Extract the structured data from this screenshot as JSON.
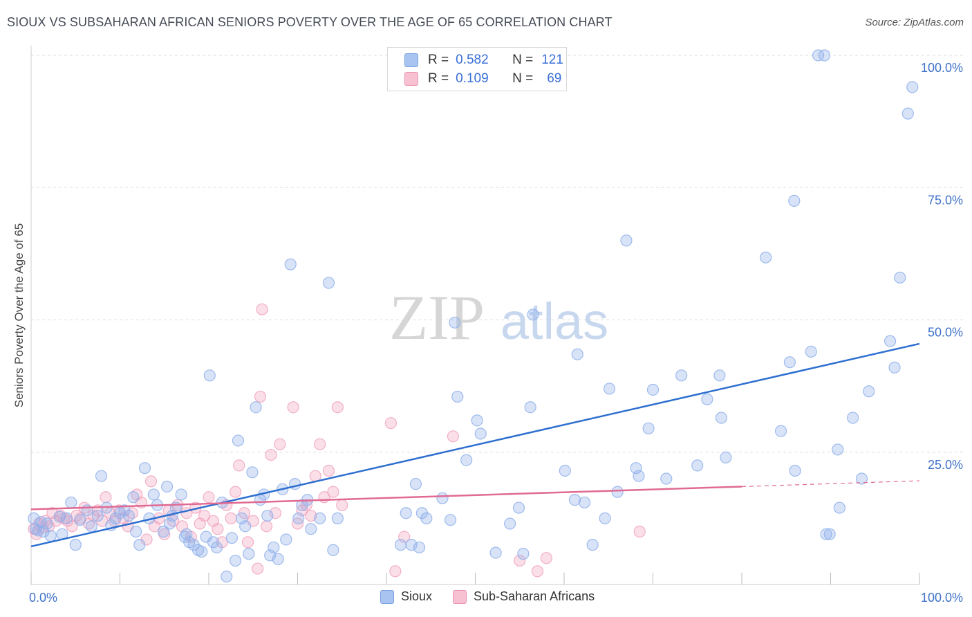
{
  "title": "SIOUX VS SUBSAHARAN AFRICAN SENIORS POVERTY OVER THE AGE OF 65 CORRELATION CHART",
  "source": "Source: ZipAtlas.com",
  "watermark": {
    "zip": "ZIP",
    "atlas": "atlas"
  },
  "legend": {
    "r_label": "R =",
    "n_label": "N =",
    "items": [
      {
        "r": "0.582",
        "n": "121",
        "color": "#a9c4f0",
        "border": "#7aa3e0"
      },
      {
        "r": "0.109",
        "n": "69",
        "color": "#f7c1d2",
        "border": "#eb93b0"
      }
    ]
  },
  "colors": {
    "blue_dot": "#8fb0ea",
    "blue_line": "#2d6fd0",
    "pink_dot": "#f1a3bd",
    "pink_line": "#e06a93",
    "tick_label": "#3f72c9"
  },
  "chart_data": {
    "type": "scatter",
    "xlabel": "",
    "ylabel": "Seniors Poverty Over the Age of 65",
    "xlim": [
      0,
      100
    ],
    "ylim": [
      0,
      100
    ],
    "x_tick_labels": [
      {
        "v": 0,
        "label": "0.0%"
      },
      {
        "v": 100,
        "label": "100.0%"
      }
    ],
    "y_tick_labels": [
      {
        "v": 25,
        "label": "25.0%"
      },
      {
        "v": 50,
        "label": "50.0%"
      },
      {
        "v": 75,
        "label": "75.0%"
      },
      {
        "v": 100,
        "label": "100.0%"
      }
    ],
    "legend_placement": "top-center",
    "series": [
      {
        "name": "Sioux",
        "trend": {
          "x0": 0,
          "y0": 7.2,
          "x1": 100,
          "y1": 45.5
        },
        "points": [
          [
            0.3,
            12.5
          ],
          [
            0.5,
            10.5
          ],
          [
            0.8,
            10.2
          ],
          [
            1.1,
            11.8
          ],
          [
            1.4,
            10.0
          ],
          [
            1.8,
            11.5
          ],
          [
            2.2,
            9.2
          ],
          [
            3.2,
            12.8
          ],
          [
            3.5,
            9.5
          ],
          [
            4.0,
            12.5
          ],
          [
            4.5,
            15.5
          ],
          [
            5.0,
            7.5
          ],
          [
            5.5,
            12.2
          ],
          [
            6.3,
            14.0
          ],
          [
            6.8,
            11.0
          ],
          [
            7.5,
            13.0
          ],
          [
            7.9,
            20.5
          ],
          [
            8.5,
            14.5
          ],
          [
            9.0,
            11.2
          ],
          [
            9.5,
            12.5
          ],
          [
            10.0,
            13.5
          ],
          [
            10.5,
            14.0
          ],
          [
            11.0,
            13.0
          ],
          [
            11.5,
            16.5
          ],
          [
            11.8,
            10.0
          ],
          [
            12.2,
            7.5
          ],
          [
            12.8,
            22.0
          ],
          [
            13.3,
            12.5
          ],
          [
            13.8,
            17.0
          ],
          [
            14.2,
            15.0
          ],
          [
            14.9,
            10.0
          ],
          [
            15.3,
            18.5
          ],
          [
            15.6,
            11.5
          ],
          [
            15.9,
            13.0
          ],
          [
            16.3,
            14.5
          ],
          [
            16.9,
            17.0
          ],
          [
            17.3,
            9.0
          ],
          [
            17.5,
            9.5
          ],
          [
            17.8,
            8.0
          ],
          [
            18.3,
            7.5
          ],
          [
            18.8,
            6.5
          ],
          [
            19.2,
            6.2
          ],
          [
            19.7,
            9.0
          ],
          [
            20.1,
            39.5
          ],
          [
            20.5,
            8.0
          ],
          [
            20.9,
            7.0
          ],
          [
            21.5,
            15.5
          ],
          [
            22.0,
            1.5
          ],
          [
            22.6,
            8.8
          ],
          [
            23.0,
            4.5
          ],
          [
            23.3,
            27.2
          ],
          [
            23.7,
            12.5
          ],
          [
            24.1,
            11.0
          ],
          [
            24.5,
            5.8
          ],
          [
            24.9,
            21.2
          ],
          [
            25.3,
            33.5
          ],
          [
            25.8,
            16.0
          ],
          [
            26.2,
            17.0
          ],
          [
            26.6,
            13.0
          ],
          [
            26.9,
            5.5
          ],
          [
            27.3,
            7.0
          ],
          [
            27.8,
            4.8
          ],
          [
            28.3,
            18.0
          ],
          [
            28.7,
            8.5
          ],
          [
            29.2,
            60.5
          ],
          [
            29.7,
            19.0
          ],
          [
            30.1,
            12.5
          ],
          [
            30.5,
            15.0
          ],
          [
            31.1,
            16.0
          ],
          [
            31.5,
            10.5
          ],
          [
            32.5,
            12.5
          ],
          [
            33.5,
            57.0
          ],
          [
            34.0,
            6.5
          ],
          [
            34.5,
            12.5
          ],
          [
            41.6,
            7.5
          ],
          [
            42.2,
            13.5
          ],
          [
            42.8,
            7.5
          ],
          [
            43.3,
            19.0
          ],
          [
            43.7,
            7.0
          ],
          [
            44.0,
            13.5
          ],
          [
            44.5,
            12.5
          ],
          [
            46.3,
            16.3
          ],
          [
            47.2,
            12.2
          ],
          [
            47.7,
            49.5
          ],
          [
            48.0,
            35.5
          ],
          [
            49.0,
            23.5
          ],
          [
            50.2,
            31.0
          ],
          [
            50.6,
            28.5
          ],
          [
            52.3,
            6.0
          ],
          [
            53.9,
            11.5
          ],
          [
            54.9,
            14.5
          ],
          [
            55.4,
            5.8
          ],
          [
            56.2,
            33.5
          ],
          [
            56.5,
            51.0
          ],
          [
            60.1,
            21.5
          ],
          [
            61.2,
            16.0
          ],
          [
            61.5,
            43.5
          ],
          [
            62.3,
            15.5
          ],
          [
            63.2,
            7.5
          ],
          [
            64.6,
            12.5
          ],
          [
            65.1,
            37.0
          ],
          [
            66.0,
            17.5
          ],
          [
            67.0,
            65.0
          ],
          [
            68.1,
            22.0
          ],
          [
            68.4,
            20.5
          ],
          [
            69.5,
            29.5
          ],
          [
            70.0,
            36.8
          ],
          [
            71.5,
            20.0
          ],
          [
            73.2,
            39.5
          ],
          [
            75.0,
            22.5
          ],
          [
            76.1,
            35.0
          ],
          [
            77.5,
            39.5
          ],
          [
            77.7,
            31.5
          ],
          [
            78.2,
            24.0
          ],
          [
            82.7,
            61.8
          ],
          [
            84.4,
            29.0
          ],
          [
            85.4,
            42.0
          ],
          [
            85.9,
            72.5
          ],
          [
            86.0,
            21.5
          ],
          [
            87.8,
            44.0
          ],
          [
            88.6,
            100.0
          ],
          [
            89.3,
            100.0
          ],
          [
            89.5,
            9.5
          ],
          [
            89.9,
            9.5
          ],
          [
            90.8,
            25.5
          ],
          [
            91.0,
            14.5
          ],
          [
            92.5,
            31.5
          ],
          [
            93.5,
            20.0
          ],
          [
            94.3,
            36.5
          ],
          [
            96.7,
            46.0
          ],
          [
            97.2,
            41.0
          ],
          [
            97.8,
            58.0
          ],
          [
            98.7,
            89.0
          ],
          [
            99.2,
            94.0
          ]
        ]
      },
      {
        "name": "Sub-Saharan Africans",
        "trend": {
          "x0": 0,
          "y0": 14.2,
          "x1": 80,
          "y1": 18.5
        },
        "trend_dashed": {
          "x0": 80,
          "y0": 18.5,
          "x1": 100,
          "y1": 19.6
        },
        "points": [
          [
            0.3,
            10.5
          ],
          [
            0.6,
            9.5
          ],
          [
            0.9,
            11.5
          ],
          [
            1.3,
            10.8
          ],
          [
            1.6,
            12.0
          ],
          [
            2.0,
            11.0
          ],
          [
            2.4,
            13.5
          ],
          [
            2.8,
            12.0
          ],
          [
            3.3,
            13.0
          ],
          [
            3.7,
            12.5
          ],
          [
            4.1,
            12.0
          ],
          [
            4.6,
            11.0
          ],
          [
            5.1,
            13.0
          ],
          [
            5.6,
            12.5
          ],
          [
            6.0,
            14.5
          ],
          [
            6.5,
            11.5
          ],
          [
            7.0,
            13.0
          ],
          [
            7.5,
            14.0
          ],
          [
            8.0,
            12.0
          ],
          [
            8.4,
            16.5
          ],
          [
            8.9,
            13.5
          ],
          [
            9.4,
            12.0
          ],
          [
            9.9,
            14.0
          ],
          [
            10.4,
            12.5
          ],
          [
            10.9,
            11.0
          ],
          [
            11.4,
            13.5
          ],
          [
            11.9,
            17.0
          ],
          [
            12.4,
            15.5
          ],
          [
            13.0,
            8.5
          ],
          [
            13.5,
            19.5
          ],
          [
            13.9,
            11.0
          ],
          [
            14.4,
            12.5
          ],
          [
            15.0,
            9.5
          ],
          [
            15.5,
            14.0
          ],
          [
            16.0,
            12.0
          ],
          [
            16.5,
            15.0
          ],
          [
            17.0,
            11.0
          ],
          [
            17.5,
            13.5
          ],
          [
            18.0,
            9.0
          ],
          [
            18.5,
            14.5
          ],
          [
            19.0,
            11.5
          ],
          [
            19.5,
            13.0
          ],
          [
            20.0,
            16.5
          ],
          [
            20.5,
            12.0
          ],
          [
            21.0,
            10.5
          ],
          [
            21.5,
            8.0
          ],
          [
            22.0,
            15.0
          ],
          [
            22.5,
            12.5
          ],
          [
            23.0,
            17.5
          ],
          [
            23.4,
            22.5
          ],
          [
            24.0,
            13.5
          ],
          [
            24.4,
            8.0
          ],
          [
            25.0,
            12.0
          ],
          [
            25.5,
            3.0
          ],
          [
            25.8,
            35.5
          ],
          [
            26.0,
            52.0
          ],
          [
            26.5,
            11.0
          ],
          [
            27.0,
            24.5
          ],
          [
            27.5,
            13.5
          ],
          [
            28.0,
            26.5
          ],
          [
            29.5,
            33.5
          ],
          [
            30.0,
            11.5
          ],
          [
            30.5,
            14.0
          ],
          [
            31.0,
            15.0
          ],
          [
            31.5,
            13.0
          ],
          [
            32.0,
            20.5
          ],
          [
            32.5,
            26.5
          ],
          [
            33.0,
            16.5
          ],
          [
            33.5,
            21.5
          ],
          [
            34.0,
            17.5
          ],
          [
            34.5,
            33.5
          ],
          [
            35.0,
            15.0
          ],
          [
            40.5,
            30.5
          ],
          [
            41.0,
            2.5
          ],
          [
            42.0,
            9.0
          ],
          [
            47.5,
            28.0
          ],
          [
            55.0,
            4.5
          ],
          [
            57.0,
            2.5
          ],
          [
            58.0,
            5.0
          ],
          [
            68.5,
            10.0
          ]
        ]
      }
    ]
  }
}
